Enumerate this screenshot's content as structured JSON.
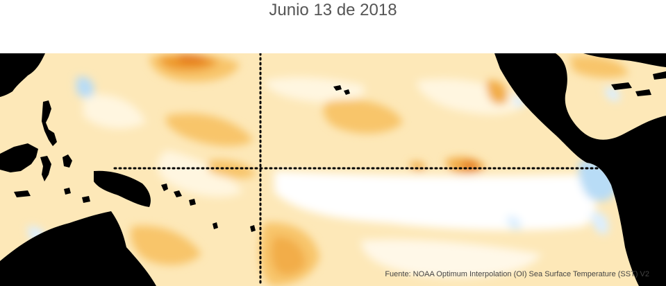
{
  "title": "Junio 13 de 2018",
  "credit": "Fuente: NOAA Optimum Interpolation (OI) Sea Surface Temperature (SST) V2",
  "colors": {
    "land": "#000000",
    "ocean_neutral": "#ffffff",
    "warm_light": "#fff3d6",
    "warm_mid": "#fde2a8",
    "warm_strong": "#f8c56a",
    "warm_hot": "#ee9a2a",
    "warm_peak": "#e4781a",
    "cool_light": "#dcefff",
    "cool_mid": "#b8dcf6",
    "gridline": "#000000"
  },
  "icons": [
    "land-mass",
    "equator-line",
    "dateline"
  ]
}
